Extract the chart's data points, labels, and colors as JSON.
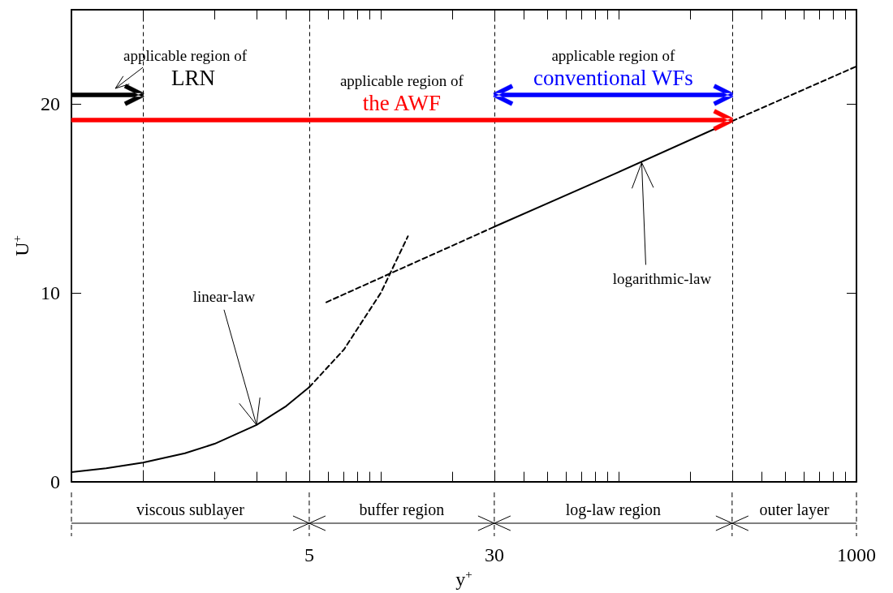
{
  "chart_data": {
    "type": "line",
    "xlabel": "y$^{+}$",
    "ylabel": "U$^{+}$",
    "log": "x",
    "xlim": [
      0.5,
      1000
    ],
    "ylim": [
      0,
      25
    ],
    "xticks": [
      {
        "value": 1,
        "label": null
      },
      {
        "value": 2,
        "label": null
      },
      {
        "value": 3,
        "label": null
      },
      {
        "value": 4,
        "label": null
      },
      5,
      {
        "value": 6,
        "label": null
      },
      {
        "value": 7,
        "label": null
      },
      {
        "value": 8,
        "label": null
      },
      {
        "value": 9,
        "label": null
      },
      {
        "value": 10,
        "label": null
      },
      {
        "value": 20,
        "label": null
      },
      30,
      {
        "value": 40,
        "label": null
      },
      {
        "value": 50,
        "label": null
      },
      {
        "value": 60,
        "label": null
      },
      {
        "value": 70,
        "label": null
      },
      {
        "value": 80,
        "label": null
      },
      {
        "value": 90,
        "label": null
      },
      {
        "value": 100,
        "label": null
      },
      {
        "value": 200,
        "label": null
      },
      {
        "value": 300,
        "label": null
      },
      {
        "value": 400,
        "label": null
      },
      {
        "value": 500,
        "label": null
      },
      {
        "value": 600,
        "label": null
      },
      {
        "value": 700,
        "label": null
      },
      {
        "value": 800,
        "label": null
      },
      {
        "value": 900,
        "label": null
      },
      1000
    ],
    "yticks": [
      0,
      10,
      20
    ],
    "series": [
      {
        "color": "#000000",
        "line_style": "solid",
        "x": [
          0.5,
          0.7,
          1,
          1.5,
          2,
          3,
          4,
          5
        ],
        "values": [
          0.5,
          0.7,
          1,
          1.5,
          2,
          3,
          4,
          5
        ]
      },
      {
        "color": "#000000",
        "line_style": "dashed",
        "x": [
          5,
          7,
          10,
          13
        ],
        "values": [
          5,
          7,
          10,
          13
        ]
      },
      {
        "color": "#000000",
        "line_style": "dashed",
        "x": [
          5.9,
          10,
          20,
          30
        ],
        "values": [
          9.5,
          10.8,
          12.5,
          13.5
        ]
      },
      {
        "color": "#000000",
        "line_style": "solid",
        "x": [
          30,
          100,
          300
        ],
        "values": [
          13.5,
          16.4,
          19.1
        ]
      },
      {
        "color": "#000000",
        "line_style": "dashed",
        "x": [
          300,
          1000
        ],
        "values": [
          19.1,
          22
        ]
      }
    ],
    "ref_lines": [
      {
        "axis": "x",
        "value": 1
      },
      {
        "axis": "x",
        "value": 5
      },
      {
        "axis": "x",
        "value": 30
      },
      {
        "axis": "x",
        "value": 300
      }
    ],
    "annotations": [
      {
        "text": "linear-law",
        "x": 3,
        "y": 3
      },
      {
        "text": "logarithmic-law",
        "x": 125,
        "y": 16.9
      },
      "applicable region of",
      "LRN",
      "applicable region of",
      "conventional WFs",
      "applicable region of",
      "the AWF",
      "viscous sublayer",
      "buffer region",
      "log-law region",
      "outer layer"
    ]
  }
}
